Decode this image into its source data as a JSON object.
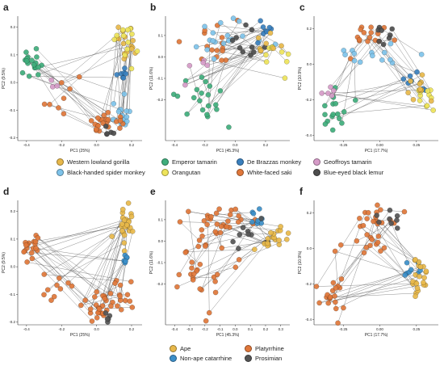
{
  "colors": {
    "gorilla": "#E8B84A",
    "spider": "#7EC3EA",
    "emperor": "#3FAE7C",
    "orangutan": "#EEE45A",
    "debrazza": "#3A80BE",
    "saki": "#E0773A",
    "geoffroys": "#D69BC8",
    "lemur": "#4D4D4D",
    "ape": "#E8B84A",
    "nonape": "#3C8FC9",
    "platyrrhine": "#E0773A",
    "prosimian": "#555555"
  },
  "legend_species": [
    {
      "label": "Western lowland gorilla",
      "color_key": "gorilla"
    },
    {
      "label": "Black-handed spider monkey",
      "color_key": "spider"
    },
    {
      "label": "Emperor tamarin",
      "color_key": "emperor"
    },
    {
      "label": "Orangutan",
      "color_key": "orangutan"
    },
    {
      "label": "De Brazzas monkey",
      "color_key": "debrazza"
    },
    {
      "label": "White-faced saki",
      "color_key": "saki"
    },
    {
      "label": "Geoffroys tamarin",
      "color_key": "geoffroys"
    },
    {
      "label": "Blue-eyed black lemur",
      "color_key": "lemur"
    }
  ],
  "legend_groups": [
    {
      "label": "Ape",
      "color_key": "ape"
    },
    {
      "label": "Non-ape catarrhine",
      "color_key": "nonape"
    },
    {
      "label": "Platyrrhine",
      "color_key": "platyrrhine"
    },
    {
      "label": "Prosimian",
      "color_key": "prosimian"
    }
  ],
  "chart_data": [
    {
      "panel": "a",
      "type": "scatter",
      "xlabel": "PC1 (25%)",
      "ylabel": "PC2 (9.5%)",
      "xlim": [
        -0.45,
        0.26
      ],
      "ylim": [
        -0.21,
        0.24
      ],
      "xticks": [
        -0.4,
        -0.2,
        0.0,
        0.2
      ],
      "xtick_labels": [
        "-0.4",
        "-0.2",
        "0.0",
        "0.2"
      ],
      "yticks": [
        -0.2,
        -0.1,
        0.0,
        0.1,
        0.2
      ],
      "ytick_labels": [
        "-0.2",
        "-0.1",
        "0.0",
        "0.1",
        "0.2"
      ],
      "clusters": [
        {
          "group": "gorilla",
          "cx": 0.17,
          "cy": 0.15,
          "sx": 0.03,
          "sy": 0.04,
          "n": 16
        },
        {
          "group": "orangutan",
          "cx": 0.17,
          "cy": 0.15,
          "sx": 0.03,
          "sy": 0.04,
          "n": 12
        },
        {
          "group": "emperor",
          "cx": -0.37,
          "cy": 0.07,
          "sx": 0.03,
          "sy": 0.025,
          "n": 18
        },
        {
          "group": "debrazza",
          "cx": 0.15,
          "cy": 0.03,
          "sx": 0.018,
          "sy": 0.018,
          "n": 7
        },
        {
          "group": "spider",
          "cx": 0.14,
          "cy": -0.11,
          "sx": 0.03,
          "sy": 0.03,
          "n": 16
        },
        {
          "group": "saki",
          "cx": 0.02,
          "cy": -0.15,
          "sx": 0.05,
          "sy": 0.02,
          "n": 22
        },
        {
          "group": "saki",
          "cx": -0.2,
          "cy": -0.06,
          "sx": 0.06,
          "sy": 0.03,
          "n": 8
        },
        {
          "group": "lemur",
          "cx": 0.06,
          "cy": -0.17,
          "sx": 0.02,
          "sy": 0.015,
          "n": 5
        },
        {
          "group": "geoffroys",
          "cx": -0.24,
          "cy": -0.01,
          "sx": 0.015,
          "sy": 0.01,
          "n": 3
        }
      ]
    },
    {
      "panel": "b",
      "type": "scatter",
      "xlabel": "PC1 (45.3%)",
      "ylabel": "PC2 (11.6%)",
      "xlim": [
        -0.46,
        0.36
      ],
      "ylim": [
        -0.39,
        0.19
      ],
      "xticks": [
        -0.4,
        -0.2,
        0.0,
        0.2
      ],
      "xtick_labels": [
        "-0.4",
        "-0.2",
        "0.0",
        "0.2"
      ],
      "yticks": [
        -0.2,
        -0.1,
        0.0,
        0.1
      ],
      "ytick_labels": [
        "-0.2",
        "-0.1",
        "0.0",
        "0.1"
      ],
      "clusters": [
        {
          "group": "emperor",
          "cx": -0.25,
          "cy": -0.2,
          "sx": 0.09,
          "sy": 0.08,
          "n": 20
        },
        {
          "group": "saki",
          "cx": -0.15,
          "cy": 0.05,
          "sx": 0.1,
          "sy": 0.05,
          "n": 16
        },
        {
          "group": "spider",
          "cx": -0.05,
          "cy": 0.09,
          "sx": 0.12,
          "sy": 0.05,
          "n": 18
        },
        {
          "group": "debrazza",
          "cx": 0.15,
          "cy": 0.12,
          "sx": 0.05,
          "sy": 0.03,
          "n": 8
        },
        {
          "group": "lemur",
          "cx": 0.08,
          "cy": 0.03,
          "sx": 0.08,
          "sy": 0.04,
          "n": 10
        },
        {
          "group": "orangutan",
          "cx": 0.25,
          "cy": 0.01,
          "sx": 0.05,
          "sy": 0.04,
          "n": 10
        },
        {
          "group": "gorilla",
          "cx": 0.22,
          "cy": 0.02,
          "sx": 0.05,
          "sy": 0.04,
          "n": 8
        },
        {
          "group": "geoffroys",
          "cx": -0.2,
          "cy": -0.05,
          "sx": 0.04,
          "sy": 0.03,
          "n": 5
        }
      ]
    },
    {
      "panel": "c",
      "type": "scatter",
      "xlabel": "PC1 (17.7%)",
      "ylabel": "PC2 (10.9%)",
      "xlim": [
        -0.45,
        0.4
      ],
      "ylim": [
        -0.43,
        0.27
      ],
      "xticks": [
        -0.25,
        0.0,
        0.25
      ],
      "xtick_labels": [
        "-0.25",
        "0.00",
        "0.25"
      ],
      "yticks": [
        -0.4,
        -0.2,
        0.0,
        0.2
      ],
      "ytick_labels": [
        "-0.4",
        "-0.2",
        "0.0",
        "0.2"
      ],
      "clusters": [
        {
          "group": "saki",
          "cx": -0.05,
          "cy": 0.17,
          "sx": 0.1,
          "sy": 0.04,
          "n": 16
        },
        {
          "group": "lemur",
          "cx": 0.05,
          "cy": 0.17,
          "sx": 0.05,
          "sy": 0.03,
          "n": 8
        },
        {
          "group": "spider",
          "cx": -0.05,
          "cy": 0.06,
          "sx": 0.15,
          "sy": 0.05,
          "n": 14
        },
        {
          "group": "debrazza",
          "cx": 0.25,
          "cy": -0.1,
          "sx": 0.05,
          "sy": 0.03,
          "n": 8
        },
        {
          "group": "orangutan",
          "cx": 0.3,
          "cy": -0.17,
          "sx": 0.04,
          "sy": 0.05,
          "n": 12
        },
        {
          "group": "gorilla",
          "cx": 0.27,
          "cy": -0.15,
          "sx": 0.05,
          "sy": 0.05,
          "n": 10
        },
        {
          "group": "emperor",
          "cx": -0.32,
          "cy": -0.28,
          "sx": 0.05,
          "sy": 0.07,
          "n": 16
        },
        {
          "group": "geoffroys",
          "cx": -0.36,
          "cy": -0.16,
          "sx": 0.02,
          "sy": 0.03,
          "n": 5
        }
      ]
    },
    {
      "panel": "d",
      "type": "scatter",
      "xlabel": "PC1 (25%)",
      "ylabel": "PC2 (9.5%)",
      "xlim": [
        -0.45,
        0.26
      ],
      "ylim": [
        -0.21,
        0.24
      ],
      "xticks": [
        -0.4,
        -0.2,
        0.0,
        0.2
      ],
      "xtick_labels": [
        "-0.4",
        "-0.2",
        "0.0",
        "0.2"
      ],
      "yticks": [
        -0.2,
        -0.1,
        0.0,
        0.1,
        0.2
      ],
      "ytick_labels": [
        "-0.2",
        "-0.1",
        "0.0",
        "0.1",
        "0.2"
      ],
      "clusters": [
        {
          "group": "ape",
          "cx": 0.17,
          "cy": 0.15,
          "sx": 0.03,
          "sy": 0.04,
          "n": 26
        },
        {
          "group": "nonape",
          "cx": 0.15,
          "cy": 0.03,
          "sx": 0.018,
          "sy": 0.018,
          "n": 7
        },
        {
          "group": "platyrrhine",
          "cx": -0.37,
          "cy": 0.07,
          "sx": 0.03,
          "sy": 0.025,
          "n": 18
        },
        {
          "group": "platyrrhine",
          "cx": 0.12,
          "cy": -0.11,
          "sx": 0.04,
          "sy": 0.03,
          "n": 16
        },
        {
          "group": "platyrrhine",
          "cx": 0.02,
          "cy": -0.15,
          "sx": 0.05,
          "sy": 0.02,
          "n": 22
        },
        {
          "group": "platyrrhine",
          "cx": -0.2,
          "cy": -0.06,
          "sx": 0.06,
          "sy": 0.03,
          "n": 10
        },
        {
          "group": "prosimian",
          "cx": 0.06,
          "cy": -0.17,
          "sx": 0.02,
          "sy": 0.015,
          "n": 5
        }
      ]
    },
    {
      "panel": "e",
      "type": "scatter",
      "xlabel": "PC1 (45.3%)",
      "ylabel": "PC2 (11.6%)",
      "xlim": [
        -0.46,
        0.36
      ],
      "ylim": [
        -0.39,
        0.19
      ],
      "xticks": [
        -0.4,
        -0.3,
        -0.2,
        -0.1,
        0.0,
        0.1,
        0.2,
        0.3
      ],
      "xtick_labels": [
        "-0.4",
        "-0.3",
        "-0.2",
        "-0.1",
        "0.0",
        "0.1",
        "0.2",
        "0.3"
      ],
      "yticks": [
        -0.2,
        -0.1,
        0.0,
        0.1
      ],
      "ytick_labels": [
        "-0.2",
        "-0.1",
        "0.0",
        "0.1"
      ],
      "clusters": [
        {
          "group": "platyrrhine",
          "cx": -0.25,
          "cy": -0.15,
          "sx": 0.1,
          "sy": 0.1,
          "n": 28
        },
        {
          "group": "platyrrhine",
          "cx": -0.1,
          "cy": 0.08,
          "sx": 0.12,
          "sy": 0.05,
          "n": 30
        },
        {
          "group": "nonape",
          "cx": 0.15,
          "cy": 0.12,
          "sx": 0.05,
          "sy": 0.03,
          "n": 8
        },
        {
          "group": "prosimian",
          "cx": 0.08,
          "cy": 0.03,
          "sx": 0.08,
          "sy": 0.04,
          "n": 10
        },
        {
          "group": "ape",
          "cx": 0.24,
          "cy": 0.01,
          "sx": 0.05,
          "sy": 0.04,
          "n": 18
        }
      ]
    },
    {
      "panel": "f",
      "type": "scatter",
      "xlabel": "PC1 (17.7%)",
      "ylabel": "PC2 (10.9%)",
      "xlim": [
        -0.45,
        0.4
      ],
      "ylim": [
        -0.43,
        0.27
      ],
      "xticks": [
        -0.25,
        0.0,
        0.25
      ],
      "xtick_labels": [
        "-0.25",
        "0.00",
        "0.25"
      ],
      "yticks": [
        -0.4,
        -0.2,
        0.0,
        0.2
      ],
      "ytick_labels": [
        "-0.4",
        "-0.2",
        "0.0",
        "0.2"
      ],
      "clusters": [
        {
          "group": "platyrrhine",
          "cx": -0.05,
          "cy": 0.17,
          "sx": 0.1,
          "sy": 0.04,
          "n": 16
        },
        {
          "group": "platyrrhine",
          "cx": -0.05,
          "cy": 0.06,
          "sx": 0.15,
          "sy": 0.05,
          "n": 14
        },
        {
          "group": "platyrrhine",
          "cx": -0.32,
          "cy": -0.25,
          "sx": 0.05,
          "sy": 0.08,
          "n": 20
        },
        {
          "group": "prosimian",
          "cx": 0.05,
          "cy": 0.17,
          "sx": 0.05,
          "sy": 0.03,
          "n": 8
        },
        {
          "group": "nonape",
          "cx": 0.25,
          "cy": -0.1,
          "sx": 0.05,
          "sy": 0.03,
          "n": 8
        },
        {
          "group": "ape",
          "cx": 0.28,
          "cy": -0.16,
          "sx": 0.05,
          "sy": 0.05,
          "n": 22
        }
      ]
    }
  ]
}
